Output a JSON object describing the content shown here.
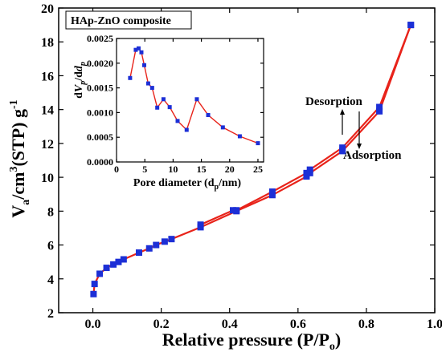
{
  "colors": {
    "line": "#e8231a",
    "marker": "#1c2fd6",
    "axis": "#000000"
  },
  "legend": {
    "label": "HAp-ZnO composite"
  },
  "annotations": {
    "desorption": "Desorption",
    "adsorption": "Adsorption"
  },
  "main_axes": {
    "xlabel_main": "Relative pressure (P/P",
    "xlabel_sub": "o",
    "xlabel_tail": ")",
    "ylabel_v": "V",
    "ylabel_sub": "a",
    "ylabel_mid": "/cm",
    "ylabel_sup3": "3",
    "ylabel_tail": "(STP) g",
    "ylabel_supm1": "-1"
  },
  "inset_axes": {
    "xlabel_main": "Pore diameter (d",
    "xlabel_sub": "p",
    "xlabel_tail": "/nm)",
    "ylabel_d1": "d",
    "ylabel_v": "V",
    "ylabel_sub1": "p",
    "ylabel_d2": "/d",
    "ylabel_d3": "d",
    "ylabel_sub2": "p"
  },
  "chart_data": [
    {
      "type": "line",
      "title": "HAp-ZnO composite",
      "xlabel": "Relative pressure (P/Po)",
      "ylabel": "Va/cm3(STP) g-1",
      "xlim": [
        -0.1,
        1.0
      ],
      "ylim": [
        2,
        20
      ],
      "xticks": [
        "0.0",
        "0.2",
        "0.4",
        "0.6",
        "0.8",
        "1.0"
      ],
      "yticks": [
        "2",
        "4",
        "6",
        "8",
        "10",
        "12",
        "14",
        "16",
        "18",
        "20"
      ],
      "series": [
        {
          "name": "Adsorption",
          "x": [
            0.002,
            0.005,
            0.02,
            0.04,
            0.06,
            0.075,
            0.09,
            0.135,
            0.165,
            0.185,
            0.21,
            0.23,
            0.315,
            0.42,
            0.525,
            0.625,
            0.635,
            0.73,
            0.838,
            0.93
          ],
          "y": [
            3.1,
            3.7,
            4.3,
            4.65,
            4.85,
            5.0,
            5.15,
            5.55,
            5.8,
            6.0,
            6.2,
            6.35,
            7.05,
            8.0,
            8.95,
            10.05,
            10.25,
            11.55,
            13.9,
            19.0
          ]
        },
        {
          "name": "Desorption",
          "x": [
            0.93,
            0.838,
            0.73,
            0.635,
            0.625,
            0.525,
            0.42,
            0.41,
            0.315
          ],
          "y": [
            19.0,
            14.15,
            11.75,
            10.45,
            10.25,
            9.15,
            8.05,
            8.05,
            7.2
          ]
        }
      ]
    },
    {
      "type": "line",
      "xlabel": "Pore diameter (dp/nm)",
      "ylabel": "dVp/ddp",
      "xlim": [
        0,
        26
      ],
      "ylim": [
        0,
        0.0025
      ],
      "xticks": [
        "0",
        "5",
        "10",
        "15",
        "20",
        "25"
      ],
      "yticks": [
        "0.0000",
        "0.0005",
        "0.0010",
        "0.0015",
        "0.0020",
        "0.0025"
      ],
      "series": [
        {
          "x": [
            2.4,
            3.4,
            3.9,
            4.4,
            4.9,
            5.6,
            6.3,
            7.2,
            8.3,
            9.4,
            10.8,
            12.4,
            14.2,
            16.2,
            18.8,
            21.8,
            25.0
          ],
          "y": [
            0.0017,
            0.00227,
            0.0023,
            0.00222,
            0.00196,
            0.00159,
            0.0015,
            0.0011,
            0.00127,
            0.00111,
            0.00083,
            0.00065,
            0.00127,
            0.00095,
            0.0007,
            0.00052,
            0.00038
          ]
        }
      ]
    }
  ]
}
